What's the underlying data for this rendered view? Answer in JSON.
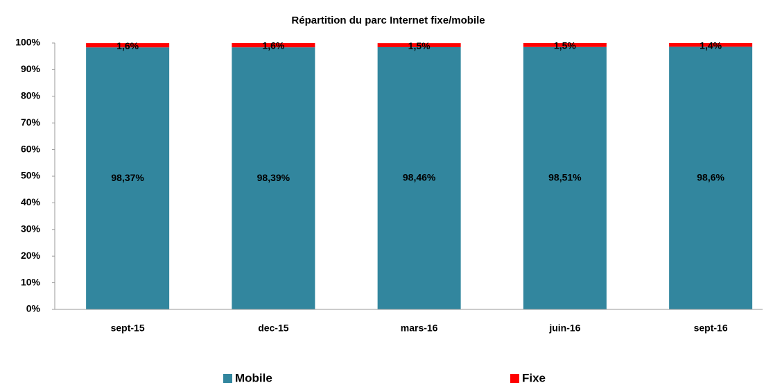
{
  "chart_data": {
    "type": "stacked_bar",
    "title": "Répartition du parc Internet fixe/mobile",
    "categories": [
      "sept-15",
      "dec-15",
      "mars-16",
      "juin-16",
      "sept-16"
    ],
    "series": [
      {
        "name": "Mobile",
        "color": "#32869e",
        "values": [
          98.37,
          98.39,
          98.46,
          98.51,
          98.6
        ],
        "value_labels": [
          "98,37%",
          "98,39%",
          "98,46%",
          "98,51%",
          "98,6%"
        ]
      },
      {
        "name": "Fixe",
        "color": "#ff0000",
        "values": [
          1.6,
          1.6,
          1.5,
          1.5,
          1.4
        ],
        "value_labels": [
          "1,6%",
          "1,6%",
          "1,5%",
          "1,5%",
          "1,4%"
        ]
      }
    ],
    "ylim": [
      0,
      100
    ],
    "yticks": [
      {
        "value": 0,
        "label": "0%"
      },
      {
        "value": 10,
        "label": "10%"
      },
      {
        "value": 20,
        "label": "20%"
      },
      {
        "value": 30,
        "label": "30%"
      },
      {
        "value": 40,
        "label": "40%"
      },
      {
        "value": 50,
        "label": "50%"
      },
      {
        "value": 60,
        "label": "60%"
      },
      {
        "value": 70,
        "label": "70%"
      },
      {
        "value": 80,
        "label": "80%"
      },
      {
        "value": 90,
        "label": "90%"
      },
      {
        "value": 100,
        "label": "100%"
      }
    ],
    "grid": false,
    "legend": "bottom"
  }
}
